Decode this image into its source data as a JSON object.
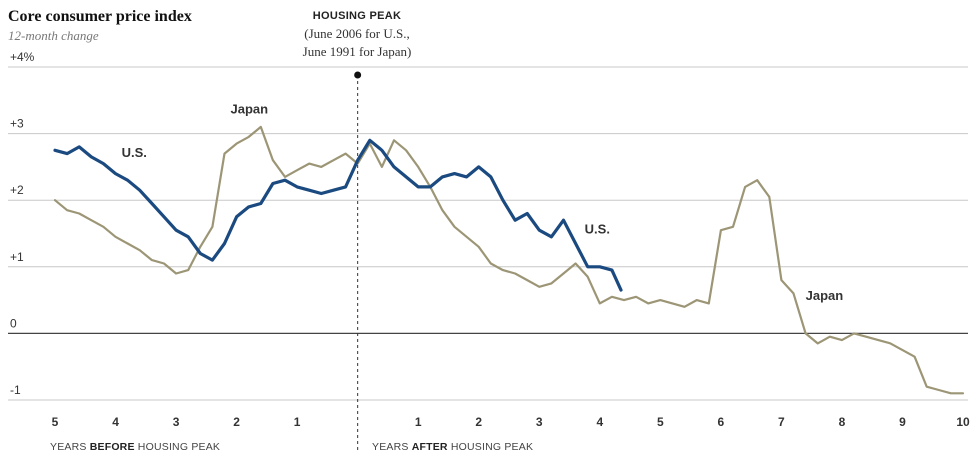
{
  "chart_data": {
    "type": "line",
    "title": "Core consumer price index",
    "subtitle": "12-month change",
    "annotation": {
      "title": "HOUSING PEAK",
      "lines": [
        "(June 2006 for U.S.,",
        "June 1991 for Japan)"
      ]
    },
    "x_axis": {
      "ticks": [
        {
          "value": -5,
          "label": "5"
        },
        {
          "value": -4,
          "label": "4"
        },
        {
          "value": -3,
          "label": "3"
        },
        {
          "value": -2,
          "label": "2"
        },
        {
          "value": -1,
          "label": "1"
        },
        {
          "value": 1,
          "label": "1"
        },
        {
          "value": 2,
          "label": "2"
        },
        {
          "value": 3,
          "label": "3"
        },
        {
          "value": 4,
          "label": "4"
        },
        {
          "value": 5,
          "label": "5"
        },
        {
          "value": 6,
          "label": "6"
        },
        {
          "value": 7,
          "label": "7"
        },
        {
          "value": 8,
          "label": "8"
        },
        {
          "value": 9,
          "label": "9"
        },
        {
          "value": 10,
          "label": "10"
        }
      ],
      "range": [
        -5,
        10
      ],
      "before_label": {
        "pre": "YEARS ",
        "bold": "BEFORE",
        "post": " HOUSING PEAK"
      },
      "after_label": {
        "pre": "YEARS ",
        "bold": "AFTER",
        "post": " HOUSING PEAK"
      }
    },
    "y_axis": {
      "range": [
        -1,
        4
      ],
      "ticks": [
        {
          "value": 4,
          "label": "+4%"
        },
        {
          "value": 3,
          "label": "+3"
        },
        {
          "value": 2,
          "label": "+2"
        },
        {
          "value": 1,
          "label": "+1"
        },
        {
          "value": 0,
          "label": "0"
        },
        {
          "value": -1,
          "label": "-1"
        }
      ]
    },
    "series": [
      {
        "name": "Japan",
        "color": "#9c9676",
        "labels": [
          {
            "text": "Japan",
            "x": -2.1,
            "y": 3.3
          },
          {
            "text": "Japan",
            "x": 7.4,
            "y": 0.5
          }
        ],
        "x": [
          -5,
          -4.8,
          -4.6,
          -4.4,
          -4.2,
          -4.0,
          -3.8,
          -3.6,
          -3.4,
          -3.2,
          -3.0,
          -2.8,
          -2.6,
          -2.4,
          -2.2,
          -2.0,
          -1.8,
          -1.6,
          -1.4,
          -1.2,
          -1.0,
          -0.8,
          -0.6,
          -0.4,
          -0.2,
          0.0,
          0.2,
          0.4,
          0.6,
          0.8,
          1.0,
          1.2,
          1.4,
          1.6,
          1.8,
          2.0,
          2.2,
          2.4,
          2.6,
          2.8,
          3.0,
          3.2,
          3.4,
          3.6,
          3.8,
          4.0,
          4.2,
          4.4,
          4.6,
          4.8,
          5.0,
          5.2,
          5.4,
          5.6,
          5.8,
          6.0,
          6.2,
          6.4,
          6.6,
          6.8,
          7.0,
          7.2,
          7.4,
          7.6,
          7.8,
          8.0,
          8.2,
          8.4,
          8.6,
          8.8,
          9.0,
          9.2,
          9.4,
          9.6,
          9.8,
          10.0
        ],
        "values": [
          2.0,
          1.85,
          1.8,
          1.7,
          1.6,
          1.45,
          1.35,
          1.25,
          1.1,
          1.05,
          0.9,
          0.95,
          1.3,
          1.6,
          2.7,
          2.85,
          2.95,
          3.1,
          2.6,
          2.35,
          2.45,
          2.55,
          2.5,
          2.6,
          2.7,
          2.55,
          2.85,
          2.5,
          2.9,
          2.75,
          2.5,
          2.2,
          1.85,
          1.6,
          1.45,
          1.3,
          1.05,
          0.95,
          0.9,
          0.8,
          0.7,
          0.75,
          0.9,
          1.05,
          0.85,
          0.45,
          0.55,
          0.5,
          0.55,
          0.45,
          0.5,
          0.45,
          0.4,
          0.5,
          0.45,
          1.55,
          1.6,
          2.2,
          2.3,
          2.05,
          0.8,
          0.6,
          0.0,
          -0.15,
          -0.05,
          -0.1,
          0.0,
          -0.05,
          -0.1,
          -0.15,
          -0.25,
          -0.35,
          -0.8,
          -0.85,
          -0.9,
          -0.9
        ]
      },
      {
        "name": "U.S.",
        "color": "#1b4a80",
        "labels": [
          {
            "text": "U.S.",
            "x": -3.9,
            "y": 2.65
          },
          {
            "text": "U.S.",
            "x": 3.75,
            "y": 1.5
          }
        ],
        "x": [
          -5,
          -4.8,
          -4.6,
          -4.4,
          -4.2,
          -4.0,
          -3.8,
          -3.6,
          -3.4,
          -3.2,
          -3.0,
          -2.8,
          -2.6,
          -2.4,
          -2.2,
          -2.0,
          -1.8,
          -1.6,
          -1.4,
          -1.2,
          -1.0,
          -0.8,
          -0.6,
          -0.4,
          -0.2,
          0.0,
          0.2,
          0.4,
          0.6,
          0.8,
          1.0,
          1.2,
          1.4,
          1.6,
          1.8,
          2.0,
          2.2,
          2.4,
          2.6,
          2.8,
          3.0,
          3.2,
          3.4,
          3.6,
          3.8,
          4.0,
          4.2,
          4.35
        ],
        "values": [
          2.75,
          2.7,
          2.8,
          2.65,
          2.55,
          2.4,
          2.3,
          2.15,
          1.95,
          1.75,
          1.55,
          1.45,
          1.2,
          1.1,
          1.35,
          1.75,
          1.9,
          1.95,
          2.25,
          2.3,
          2.2,
          2.15,
          2.1,
          2.15,
          2.2,
          2.6,
          2.9,
          2.75,
          2.5,
          2.35,
          2.2,
          2.2,
          2.35,
          2.4,
          2.35,
          2.5,
          2.35,
          2.0,
          1.7,
          1.8,
          1.55,
          1.45,
          1.7,
          1.35,
          1.0,
          1.0,
          0.95,
          0.65
        ]
      }
    ],
    "grid": true,
    "legend": "inline labels"
  }
}
